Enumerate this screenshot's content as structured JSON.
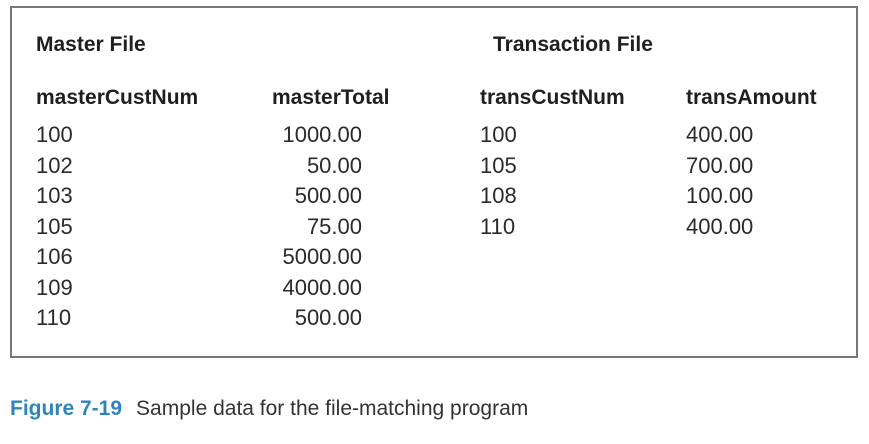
{
  "master": {
    "title": "Master File",
    "headers": {
      "cust": "masterCustNum",
      "total": "masterTotal"
    },
    "rows": [
      {
        "cust": "100",
        "total": "1000.00"
      },
      {
        "cust": "102",
        "total": "50.00"
      },
      {
        "cust": "103",
        "total": "500.00"
      },
      {
        "cust": "105",
        "total": "75.00"
      },
      {
        "cust": "106",
        "total": "5000.00"
      },
      {
        "cust": "109",
        "total": "4000.00"
      },
      {
        "cust": "110",
        "total": "500.00"
      }
    ]
  },
  "transaction": {
    "title": "Transaction File",
    "headers": {
      "cust": "transCustNum",
      "amount": "transAmount"
    },
    "rows": [
      {
        "cust": "100",
        "amount": "400.00"
      },
      {
        "cust": "105",
        "amount": "700.00"
      },
      {
        "cust": "108",
        "amount": "100.00"
      },
      {
        "cust": "110",
        "amount": "400.00"
      }
    ]
  },
  "caption": {
    "label": "Figure 7-19",
    "text": "Sample data for the file-matching program"
  },
  "colors": {
    "caption_label": "#2e86b8",
    "border": "#777777"
  }
}
